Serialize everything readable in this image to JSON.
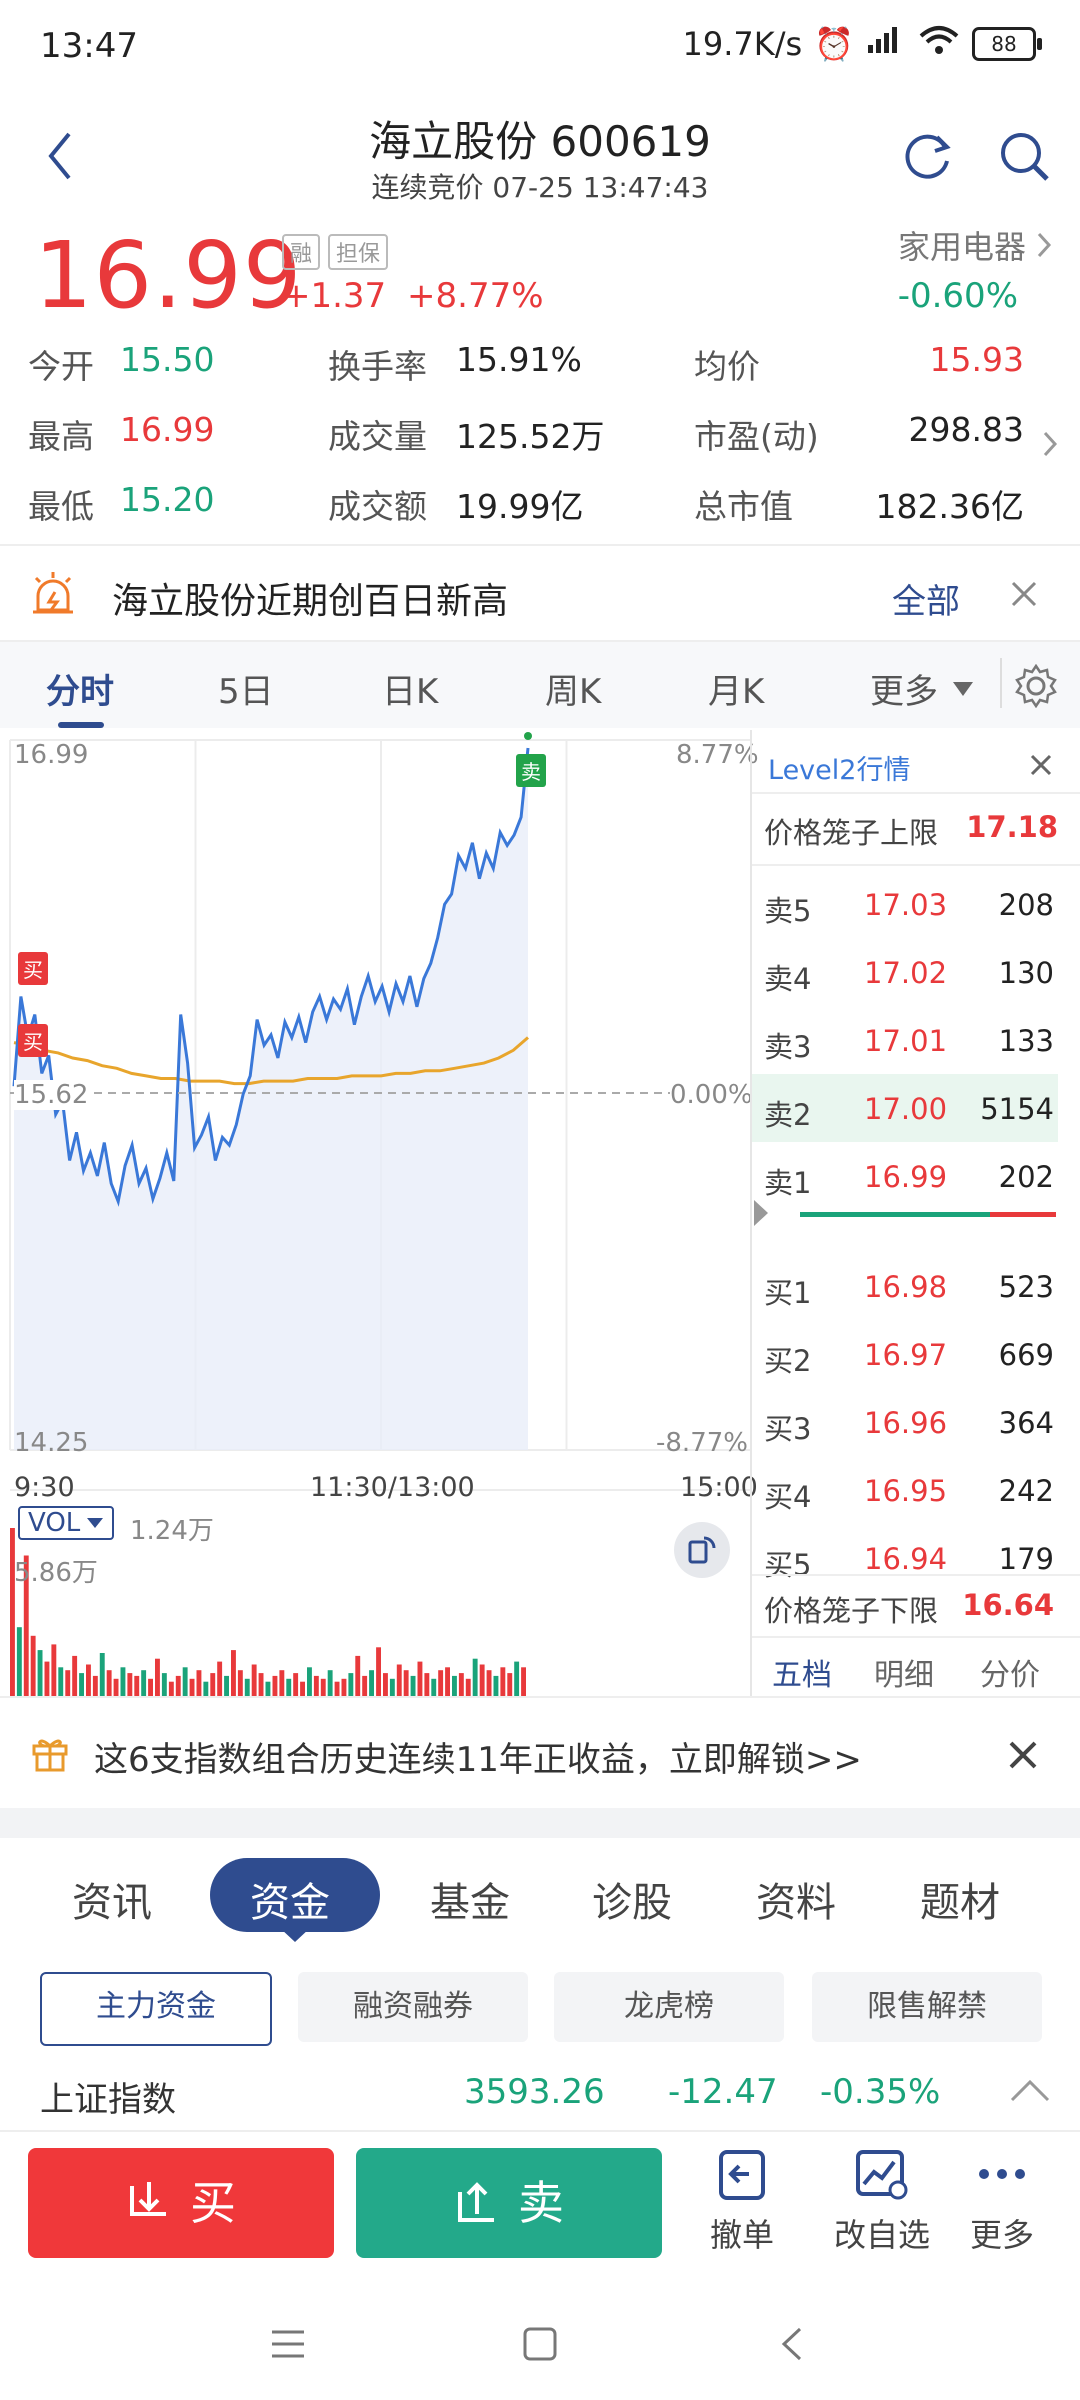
{
  "status": {
    "time": "13:47",
    "net_speed": "19.7K/s",
    "battery": "88"
  },
  "header": {
    "title": "海立股份 600619",
    "subtitle": "连续竞价 07-25 13:47:43"
  },
  "quote": {
    "price": "16.99",
    "tag1": "融",
    "tag2": "担保",
    "change": "+1.37",
    "change_pct": "+8.77%",
    "sector": "家用电器",
    "sector_change": "-0.60%",
    "stats": [
      {
        "label": "今开",
        "value": "15.50"
      },
      {
        "label": "换手率",
        "value": "15.91%"
      },
      {
        "label": "均价",
        "value": "15.93"
      },
      {
        "label": "最高",
        "value": "16.99"
      },
      {
        "label": "成交量",
        "value": "125.52万"
      },
      {
        "label": "市盈(动)",
        "value": "298.83"
      },
      {
        "label": "最低",
        "value": "15.20"
      },
      {
        "label": "成交额",
        "value": "19.99亿"
      },
      {
        "label": "总市值",
        "value": "182.36亿"
      }
    ]
  },
  "notice": {
    "text": "海立股份近期创百日新高",
    "all_label": "全部"
  },
  "chart_tabs": [
    "分时",
    "5日",
    "日K",
    "周K",
    "月K",
    "更多"
  ],
  "chart_data": {
    "type": "line",
    "y_top": "16.99",
    "y_mid": "15.62",
    "y_bottom": "14.25",
    "pct_top": "8.77%",
    "pct_mid": "0.00%",
    "pct_bottom": "-8.77%",
    "x_labels": [
      "9:30",
      "11:30/13:00",
      "15:00"
    ],
    "buy_marker": "买",
    "sell_marker": "卖",
    "ylim": [
      14.25,
      16.99
    ],
    "price_series": [
      15.67,
      16.02,
      15.86,
      15.95,
      15.72,
      15.79,
      15.56,
      15.61,
      15.38,
      15.49,
      15.34,
      15.41,
      15.32,
      15.45,
      15.29,
      15.22,
      15.36,
      15.44,
      15.29,
      15.35,
      15.23,
      15.31,
      15.41,
      15.3,
      15.95,
      15.76,
      15.43,
      15.48,
      15.55,
      15.38,
      15.47,
      15.44,
      15.52,
      15.64,
      15.71,
      15.93,
      15.83,
      15.87,
      15.78,
      15.92,
      15.86,
      15.94,
      15.84,
      15.96,
      16.02,
      15.93,
      16.01,
      15.97,
      16.05,
      15.91,
      16.02,
      16.1,
      16.0,
      16.06,
      15.96,
      16.07,
      16.0,
      16.1,
      15.98,
      16.09,
      16.15,
      16.25,
      16.38,
      16.42,
      16.57,
      16.52,
      16.62,
      16.48,
      16.58,
      16.52,
      16.66,
      16.61,
      16.65,
      16.72,
      16.99
    ],
    "avg_series": [
      15.84,
      15.83,
      15.81,
      15.8,
      15.78,
      15.77,
      15.75,
      15.74,
      15.72,
      15.71,
      15.7,
      15.7,
      15.69,
      15.69,
      15.69,
      15.68,
      15.68,
      15.69,
      15.69,
      15.69,
      15.7,
      15.7,
      15.7,
      15.71,
      15.71,
      15.71,
      15.72,
      15.72,
      15.73,
      15.73,
      15.74,
      15.75,
      15.76,
      15.78,
      15.81,
      15.86
    ],
    "volume_label": "VOL",
    "volume_value": "1.24万",
    "volume_max": "5.86万",
    "volume_series": [
      5.86,
      2.4,
      4.9,
      2.1,
      1.6,
      1.2,
      1.8,
      1.0,
      0.9,
      1.4,
      0.8,
      1.1,
      0.7,
      1.5,
      0.9,
      0.6,
      1.0,
      0.8,
      0.7,
      0.9,
      0.6,
      1.3,
      0.8,
      0.5,
      0.7,
      1.0,
      0.6,
      0.9,
      0.5,
      0.8,
      1.2,
      0.7,
      1.6,
      0.9,
      0.6,
      1.1,
      0.8,
      0.5,
      0.7,
      0.9,
      0.6,
      0.8,
      0.5,
      1.0,
      0.7,
      0.6,
      0.9,
      0.5,
      0.6,
      0.8,
      1.4,
      0.7,
      0.9,
      1.7,
      0.8,
      0.6,
      1.1,
      0.9,
      0.7,
      1.2,
      0.8,
      0.6,
      0.9,
      1.0,
      0.7,
      0.8,
      0.6,
      1.3,
      1.1,
      0.9,
      0.7,
      1.0,
      0.8,
      1.2,
      1.0
    ]
  },
  "level2": {
    "title": "Level2行情",
    "upper_label": "价格笼子上限",
    "upper_value": "17.18",
    "asks": [
      {
        "label": "卖5",
        "price": "17.03",
        "vol": "208"
      },
      {
        "label": "卖4",
        "price": "17.02",
        "vol": "130"
      },
      {
        "label": "卖3",
        "price": "17.01",
        "vol": "133"
      },
      {
        "label": "卖2",
        "price": "17.00",
        "vol": "5154"
      },
      {
        "label": "卖1",
        "price": "16.99",
        "vol": "202"
      }
    ],
    "bids": [
      {
        "label": "买1",
        "price": "16.98",
        "vol": "523"
      },
      {
        "label": "买2",
        "price": "16.97",
        "vol": "669"
      },
      {
        "label": "买3",
        "price": "16.96",
        "vol": "364"
      },
      {
        "label": "买4",
        "price": "16.95",
        "vol": "242"
      },
      {
        "label": "买5",
        "price": "16.94",
        "vol": "179"
      }
    ],
    "lower_label": "价格笼子下限",
    "lower_value": "16.64",
    "tabs": [
      "五档",
      "明细",
      "分价"
    ]
  },
  "promo": {
    "text": "这6支指数组合历史连续11年正收益，立即解锁>>"
  },
  "bottom_tabs": [
    "资讯",
    "资金",
    "基金",
    "诊股",
    "资料",
    "题材"
  ],
  "chips": [
    "主力资金",
    "融资融券",
    "龙虎榜",
    "限售解禁"
  ],
  "index_row": {
    "name": "上证指数",
    "value": "3593.26",
    "change": "-12.47",
    "pct": "-0.35%"
  },
  "actions": {
    "buy": "买",
    "sell": "卖",
    "cancel": "撤单",
    "watch": "改自选",
    "more": "更多"
  },
  "colors": {
    "up": "#e8393b",
    "down": "#1aa37a",
    "accent": "#2f4c8f"
  }
}
